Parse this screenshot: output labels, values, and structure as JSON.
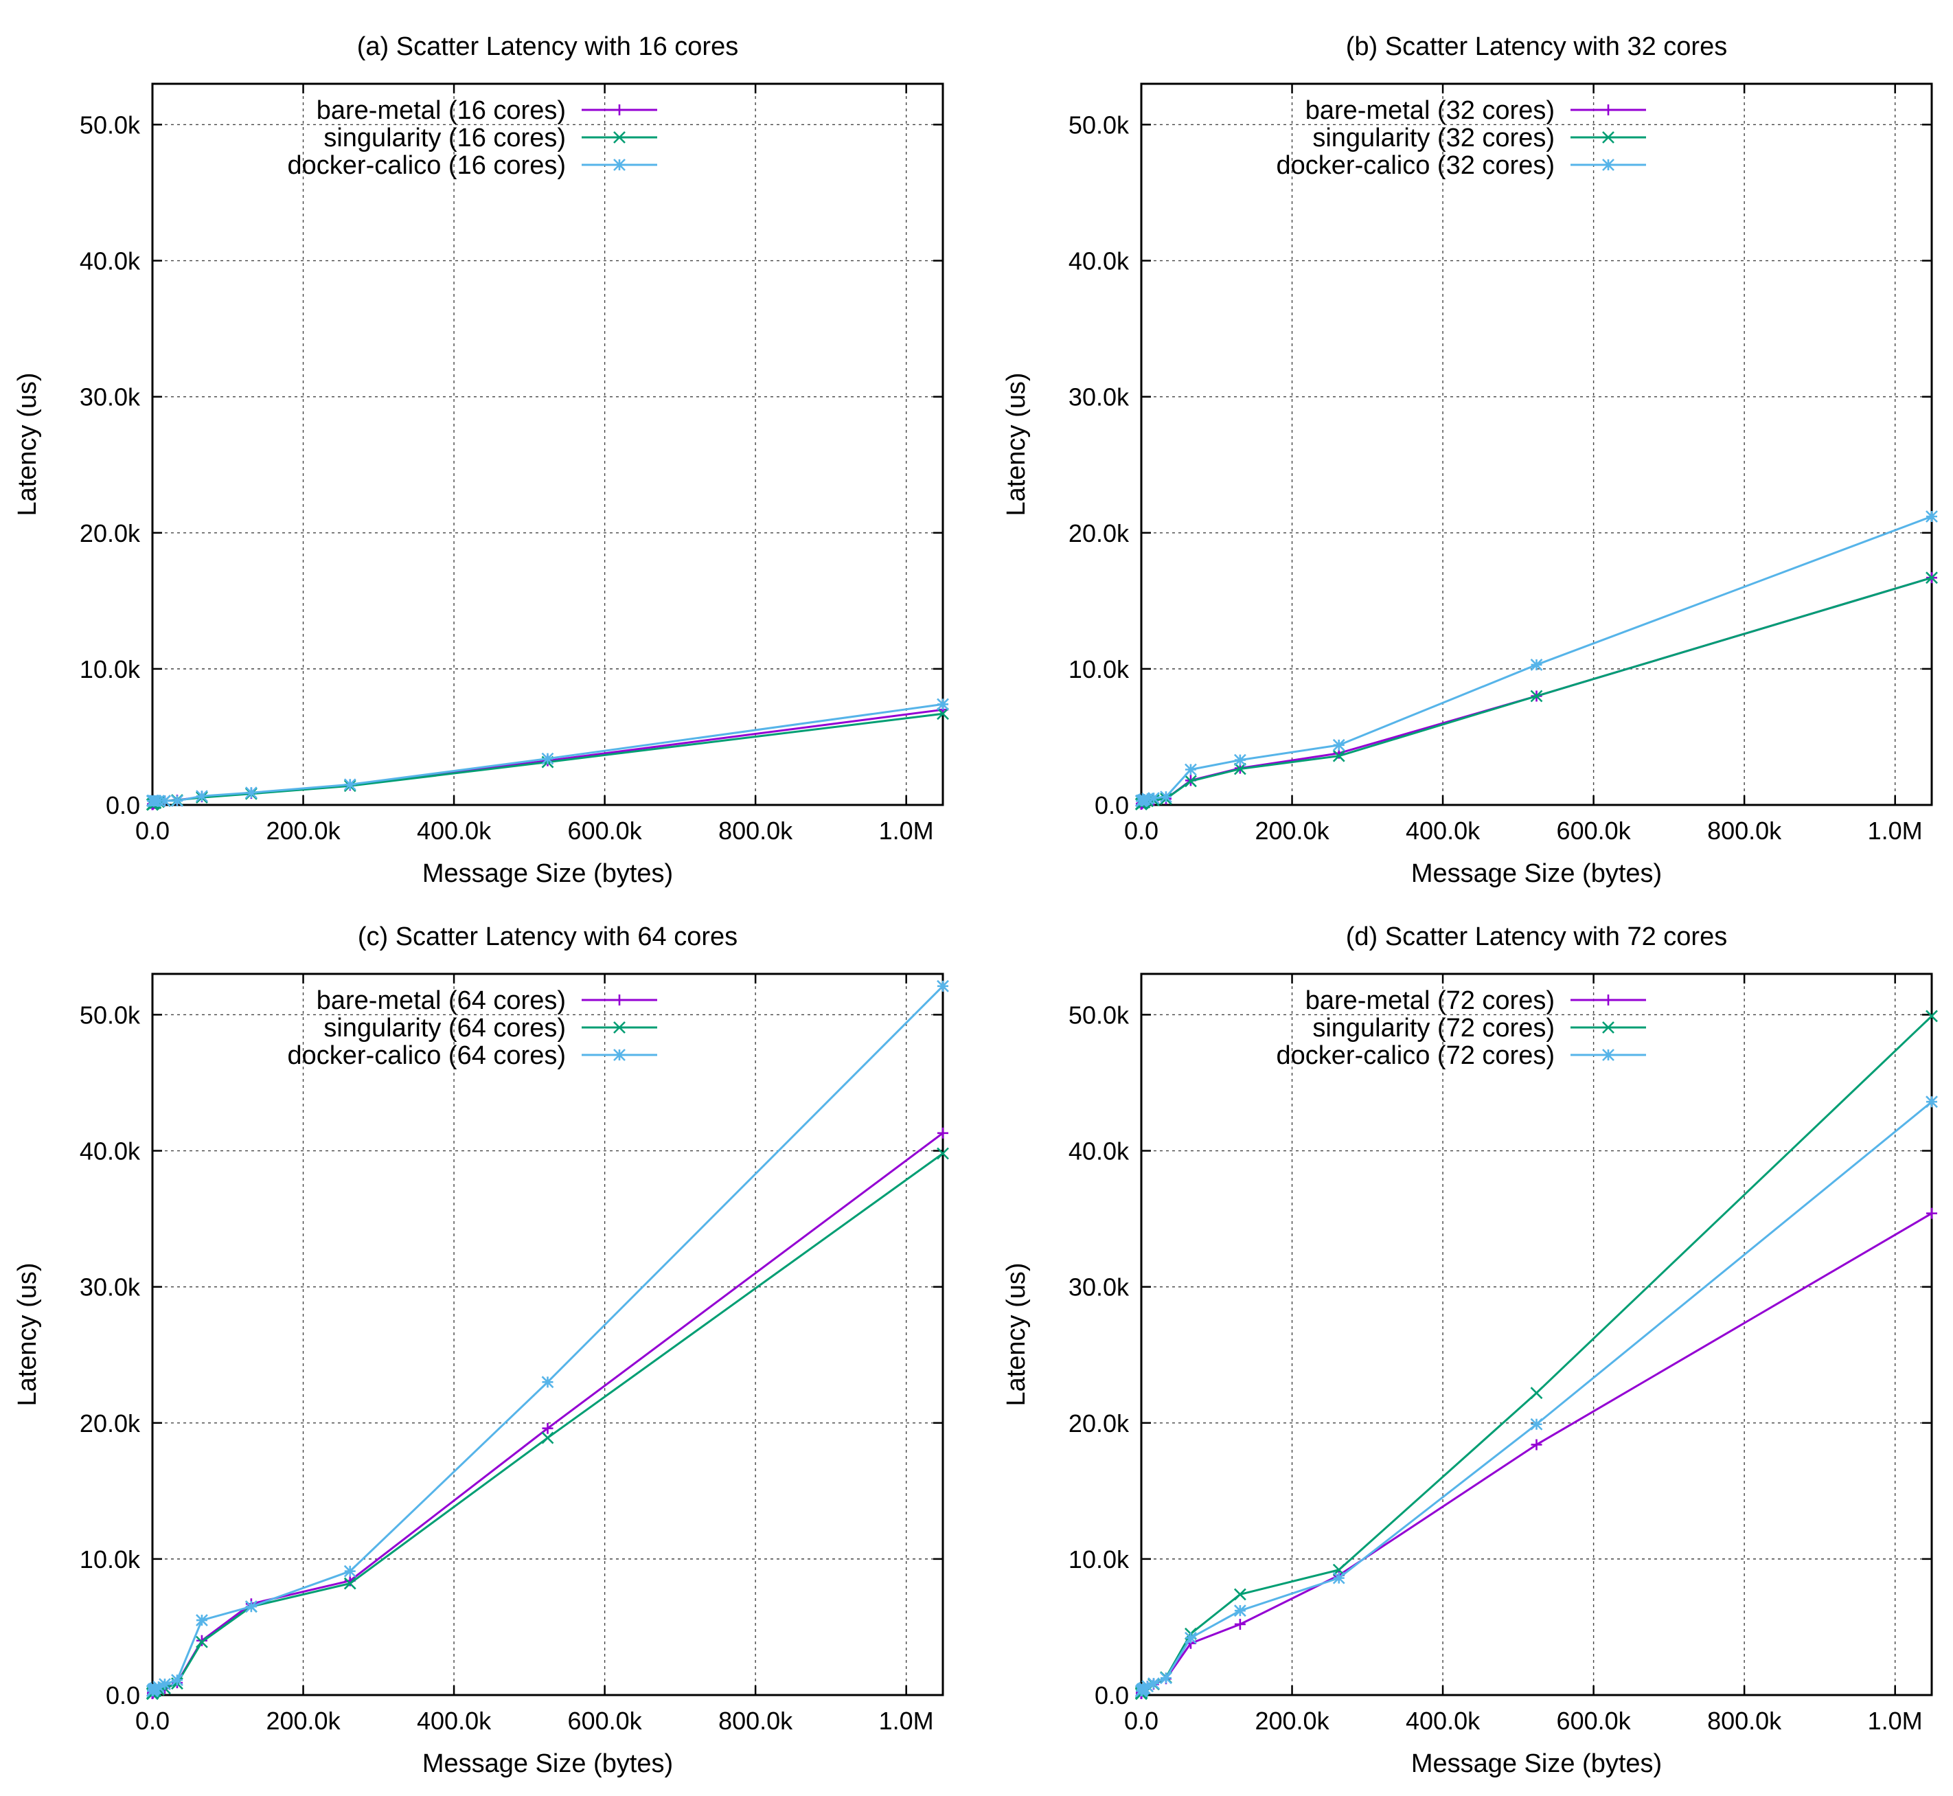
{
  "chart_data": [
    {
      "type": "line",
      "title": "(a) Scatter Latency with 16 cores",
      "xlabel": "Message Size (bytes)",
      "ylabel": "Latency (us)",
      "xlim": [
        0,
        1048576
      ],
      "ylim": [
        0,
        53000
      ],
      "xticks": [
        0,
        200000,
        400000,
        600000,
        800000,
        1000000
      ],
      "xtick_labels": [
        "0.0",
        "200.0k",
        "400.0k",
        "600.0k",
        "800.0k",
        "1.0M"
      ],
      "yticks": [
        0,
        10000,
        20000,
        30000,
        40000,
        50000
      ],
      "ytick_labels": [
        "0.0",
        "10.0k",
        "20.0k",
        "30.0k",
        "40.0k",
        "50.0k"
      ],
      "grid": true,
      "legend_position": "top-left",
      "x": [
        1,
        2,
        4,
        8,
        16,
        32,
        64,
        128,
        256,
        512,
        1024,
        2048,
        4096,
        8192,
        16384,
        32768,
        65536,
        131072,
        262144,
        524288,
        1048576
      ],
      "series": [
        {
          "name": "bare-metal (16 cores)",
          "color": "#9400d3",
          "marker": "plus",
          "values": [
            30,
            30,
            30,
            30,
            30,
            40,
            40,
            50,
            50,
            60,
            80,
            110,
            150,
            220,
            290,
            350,
            600,
            850,
            1450,
            3250,
            7000
          ]
        },
        {
          "name": "singularity (16 cores)",
          "color": "#009e73",
          "marker": "cross",
          "values": [
            30,
            30,
            30,
            30,
            30,
            40,
            40,
            50,
            50,
            60,
            80,
            110,
            150,
            220,
            290,
            350,
            550,
            820,
            1400,
            3150,
            6700
          ]
        },
        {
          "name": "docker-calico (16 cores)",
          "color": "#56b4e9",
          "marker": "star",
          "values": [
            300,
            300,
            300,
            300,
            300,
            300,
            300,
            300,
            300,
            300,
            300,
            300,
            300,
            300,
            300,
            300,
            650,
            900,
            1500,
            3400,
            7400
          ]
        }
      ]
    },
    {
      "type": "line",
      "title": "(b) Scatter Latency with 32 cores",
      "xlabel": "Message Size (bytes)",
      "ylabel": "Latency (us)",
      "xlim": [
        0,
        1048576
      ],
      "ylim": [
        0,
        53000
      ],
      "xticks": [
        0,
        200000,
        400000,
        600000,
        800000,
        1000000
      ],
      "xtick_labels": [
        "0.0",
        "200.0k",
        "400.0k",
        "600.0k",
        "800.0k",
        "1.0M"
      ],
      "yticks": [
        0,
        10000,
        20000,
        30000,
        40000,
        50000
      ],
      "ytick_labels": [
        "0.0",
        "10.0k",
        "20.0k",
        "30.0k",
        "40.0k",
        "50.0k"
      ],
      "grid": true,
      "legend_position": "top-left",
      "x": [
        1,
        2,
        4,
        8,
        16,
        32,
        64,
        128,
        256,
        512,
        1024,
        2048,
        4096,
        8192,
        16384,
        32768,
        65536,
        131072,
        262144,
        524288,
        1048576
      ],
      "series": [
        {
          "name": "bare-metal (32 cores)",
          "color": "#9400d3",
          "marker": "plus",
          "values": [
            60,
            60,
            60,
            60,
            60,
            70,
            70,
            80,
            90,
            100,
            120,
            150,
            200,
            280,
            350,
            450,
            1800,
            2700,
            3800,
            8000,
            16700
          ]
        },
        {
          "name": "singularity (32 cores)",
          "color": "#009e73",
          "marker": "cross",
          "values": [
            60,
            60,
            60,
            60,
            60,
            70,
            70,
            80,
            90,
            100,
            120,
            150,
            200,
            280,
            350,
            450,
            1750,
            2650,
            3600,
            8000,
            16700
          ]
        },
        {
          "name": "docker-calico (32 cores)",
          "color": "#56b4e9",
          "marker": "star",
          "values": [
            300,
            300,
            300,
            300,
            300,
            300,
            300,
            300,
            300,
            300,
            300,
            350,
            400,
            450,
            500,
            600,
            2600,
            3300,
            4400,
            10300,
            21200
          ]
        }
      ]
    },
    {
      "type": "line",
      "title": "(c) Scatter Latency with 64 cores",
      "xlabel": "Message Size (bytes)",
      "ylabel": "Latency (us)",
      "xlim": [
        0,
        1048576
      ],
      "ylim": [
        0,
        53000
      ],
      "xticks": [
        0,
        200000,
        400000,
        600000,
        800000,
        1000000
      ],
      "xtick_labels": [
        "0.0",
        "200.0k",
        "400.0k",
        "600.0k",
        "800.0k",
        "1.0M"
      ],
      "yticks": [
        0,
        10000,
        20000,
        30000,
        40000,
        50000
      ],
      "ytick_labels": [
        "0.0",
        "10.0k",
        "20.0k",
        "30.0k",
        "40.0k",
        "50.0k"
      ],
      "grid": true,
      "legend_position": "top-left",
      "x": [
        1,
        2,
        4,
        8,
        16,
        32,
        64,
        128,
        256,
        512,
        1024,
        2048,
        4096,
        8192,
        16384,
        32768,
        65536,
        131072,
        262144,
        524288,
        1048576
      ],
      "series": [
        {
          "name": "bare-metal (64 cores)",
          "color": "#9400d3",
          "marker": "plus",
          "values": [
            100,
            100,
            100,
            100,
            100,
            110,
            120,
            130,
            150,
            170,
            200,
            250,
            300,
            400,
            500,
            900,
            4000,
            6700,
            8400,
            19600,
            41300
          ]
        },
        {
          "name": "singularity (64 cores)",
          "color": "#009e73",
          "marker": "cross",
          "values": [
            100,
            100,
            100,
            100,
            100,
            110,
            120,
            130,
            150,
            170,
            200,
            250,
            300,
            400,
            500,
            850,
            3900,
            6500,
            8200,
            18900,
            39800
          ]
        },
        {
          "name": "docker-calico (64 cores)",
          "color": "#56b4e9",
          "marker": "star",
          "values": [
            300,
            300,
            300,
            300,
            300,
            300,
            300,
            300,
            300,
            300,
            400,
            450,
            500,
            600,
            800,
            1100,
            5500,
            6500,
            9100,
            23000,
            52100
          ]
        }
      ]
    },
    {
      "type": "line",
      "title": "(d) Scatter Latency with 72 cores",
      "xlabel": "Message Size (bytes)",
      "ylabel": "Latency (us)",
      "xlim": [
        0,
        1048576
      ],
      "ylim": [
        0,
        53000
      ],
      "xticks": [
        0,
        200000,
        400000,
        600000,
        800000,
        1000000
      ],
      "xtick_labels": [
        "0.0",
        "200.0k",
        "400.0k",
        "600.0k",
        "800.0k",
        "1.0M"
      ],
      "yticks": [
        0,
        10000,
        20000,
        30000,
        40000,
        50000
      ],
      "ytick_labels": [
        "0.0",
        "10.0k",
        "20.0k",
        "30.0k",
        "40.0k",
        "50.0k"
      ],
      "grid": true,
      "legend_position": "top-left",
      "x": [
        1,
        2,
        4,
        8,
        16,
        32,
        64,
        128,
        256,
        512,
        1024,
        2048,
        4096,
        8192,
        16384,
        32768,
        65536,
        131072,
        262144,
        524288,
        1048576
      ],
      "series": [
        {
          "name": "bare-metal (72 cores)",
          "color": "#9400d3",
          "marker": "plus",
          "values": [
            100,
            100,
            100,
            100,
            100,
            120,
            150,
            180,
            220,
            260,
            300,
            400,
            500,
            650,
            800,
            1200,
            3800,
            5200,
            8800,
            18400,
            35400
          ]
        },
        {
          "name": "singularity (72 cores)",
          "color": "#009e73",
          "marker": "cross",
          "values": [
            100,
            100,
            100,
            100,
            100,
            120,
            150,
            180,
            220,
            260,
            300,
            400,
            500,
            650,
            800,
            1300,
            4500,
            7400,
            9200,
            22200,
            49900
          ]
        },
        {
          "name": "docker-calico (72 cores)",
          "color": "#56b4e9",
          "marker": "star",
          "values": [
            300,
            300,
            300,
            300,
            300,
            300,
            300,
            300,
            300,
            300,
            400,
            450,
            500,
            650,
            850,
            1250,
            4200,
            6200,
            8600,
            19900,
            43600
          ]
        }
      ]
    }
  ]
}
